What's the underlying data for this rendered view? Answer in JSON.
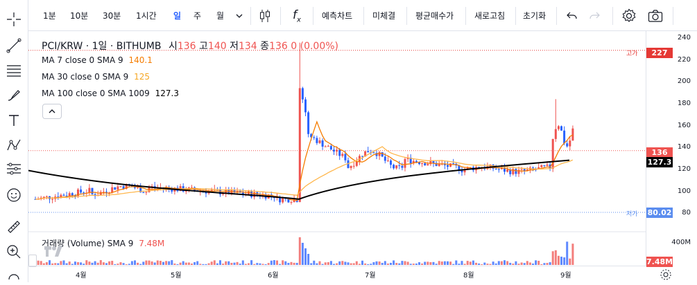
{
  "toolbar": {
    "intervals": [
      "1분",
      "10분",
      "30분",
      "1시간",
      "일",
      "주",
      "월"
    ],
    "active_interval": "일",
    "actions": [
      "예측차트",
      "미체결",
      "평균매수가",
      "새로고침",
      "초기화"
    ],
    "fx_label": "f",
    "fx_sub": "x"
  },
  "legend": {
    "symbol": "PCI/KRW · 1일 · BITHUMB",
    "open_label": "시",
    "open": "136",
    "high_label": "고",
    "high": "140",
    "low_label": "저",
    "low": "134",
    "close_label": "종",
    "close": "136",
    "change": "0 (0.00%)",
    "ma7_label": "MA 7 close 0 SMA 9",
    "ma7_value": "140.1",
    "ma30_label": "MA 30 close 0 SMA 9",
    "ma30_value": "125",
    "ma100_label": "MA 100 close 0 SMA 1009",
    "ma100_value": "127.3",
    "volume_label": "거래량 (Volume) SMA 9",
    "volume_value": "7.48M"
  },
  "price_axis": {
    "ticks": [
      "240",
      "220",
      "200",
      "180",
      "160",
      "140",
      "120",
      "100",
      "80"
    ],
    "high_label": "고가",
    "high_value": "227",
    "low_label": "저가",
    "low_value": "80.02",
    "last_price": "136",
    "ma100_tag": "127.3",
    "volume_ticks": [
      "400M"
    ],
    "volume_tag": "7.48M"
  },
  "time_axis": {
    "labels": [
      "4월",
      "5월",
      "6월",
      "7월",
      "8월",
      "9월"
    ]
  },
  "colors": {
    "up": "#ef5350",
    "down": "#2962ff",
    "ma7": "#f57c00",
    "ma30": "#ffb74d",
    "ma100": "#000000",
    "accent": "#2962ff",
    "high": "#e53935",
    "low": "#5b8def"
  },
  "icons": [
    "crosshair-icon",
    "trendline-icon",
    "fib-icon",
    "brush-icon",
    "text-icon",
    "pattern-icon",
    "measure-icon",
    "emoji-icon",
    "ruler-icon",
    "zoom-icon",
    "lock-icon",
    "candle-type-icon",
    "undo-icon",
    "redo-icon",
    "settings-icon",
    "camera-icon",
    "chevron-down-icon",
    "chevron-up-icon",
    "logo-icon",
    "settings-gear-small-icon"
  ]
}
